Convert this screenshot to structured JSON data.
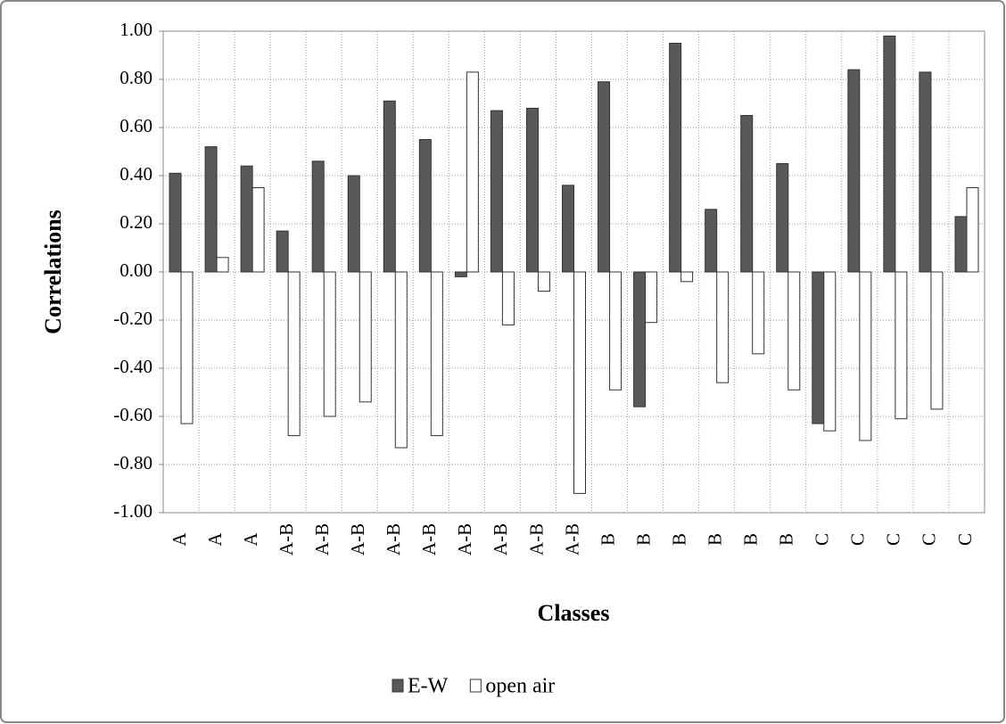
{
  "chart_data": {
    "type": "bar",
    "x_label": "Classes",
    "y_label": "Correlations",
    "categories": [
      "A",
      "A",
      "A",
      "A-B",
      "A-B",
      "A-B",
      "A-B",
      "A-B",
      "A-B",
      "A-B",
      "A-B",
      "A-B",
      "B",
      "B",
      "B",
      "B",
      "B",
      "B",
      "C",
      "C",
      "C",
      "C",
      "C"
    ],
    "series": [
      {
        "name": "E-W",
        "color": "#595959",
        "values": [
          0.41,
          0.52,
          0.44,
          0.17,
          0.46,
          0.4,
          0.71,
          0.55,
          -0.02,
          0.67,
          0.68,
          0.36,
          0.79,
          -0.56,
          0.95,
          0.26,
          0.65,
          0.45,
          -0.63,
          0.84,
          0.98,
          0.83,
          0.23
        ]
      },
      {
        "name": "open air",
        "color": "#ffffff",
        "values": [
          -0.63,
          0.06,
          0.35,
          -0.68,
          -0.6,
          -0.54,
          -0.73,
          -0.68,
          0.83,
          -0.22,
          -0.08,
          -0.92,
          -0.49,
          -0.21,
          -0.04,
          -0.46,
          -0.34,
          -0.49,
          -0.66,
          -0.7,
          -0.61,
          -0.57,
          0.35
        ]
      }
    ],
    "ylim": [
      -1,
      1
    ],
    "yticks": [
      {
        "value": 1,
        "label": "1.00"
      },
      {
        "value": 0.8,
        "label": "0.80"
      },
      {
        "value": 0.6,
        "label": "0.60"
      },
      {
        "value": 0.4,
        "label": "0.40"
      },
      {
        "value": 0.2,
        "label": "0.20"
      },
      {
        "value": 0,
        "label": "0.00"
      },
      {
        "value": -0.2,
        "label": "-0.20"
      },
      {
        "value": -0.4,
        "label": "-0.40"
      },
      {
        "value": -0.6,
        "label": "-0.60"
      },
      {
        "value": -0.8,
        "label": "-0.80"
      },
      {
        "value": -1,
        "label": "-1.00"
      }
    ],
    "grid": true,
    "legend": "bottom"
  }
}
